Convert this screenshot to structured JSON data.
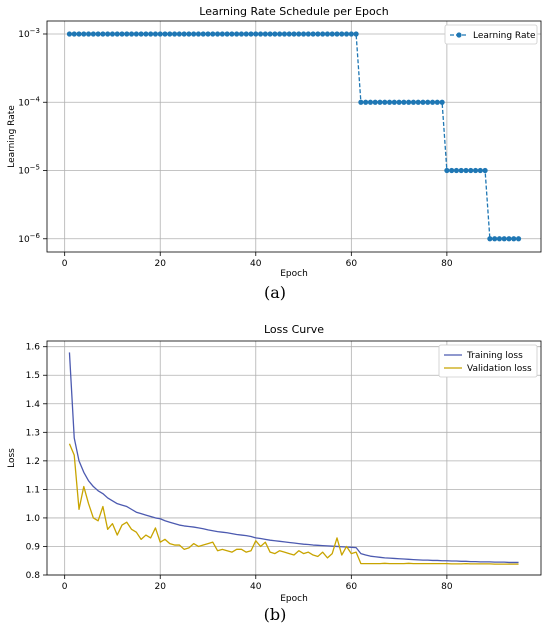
{
  "chart_data": [
    {
      "type": "line",
      "panel_label": "(a)",
      "title": "Learning Rate Schedule per Epoch",
      "xlabel": "Epoch",
      "ylabel": "Learning Rate",
      "yscale": "log",
      "xlim": [
        -3.7,
        99.7
      ],
      "ylim": [
        6.4e-07,
        0.00155
      ],
      "xticks": [
        0,
        20,
        40,
        60,
        80
      ],
      "yticks": [
        {
          "value": 1e-06,
          "base": "10",
          "exp": "−6"
        },
        {
          "value": 1e-05,
          "base": "10",
          "exp": "−5"
        },
        {
          "value": 0.0001,
          "base": "10",
          "exp": "−4"
        },
        {
          "value": 0.001,
          "base": "10",
          "exp": "−3"
        }
      ],
      "grid": true,
      "legend": "top-right",
      "series": [
        {
          "name": "Learning Rate",
          "color": "#1f77b4",
          "style": "dashed-with-markers",
          "x": [
            1,
            2,
            3,
            4,
            5,
            6,
            7,
            8,
            9,
            10,
            11,
            12,
            13,
            14,
            15,
            16,
            17,
            18,
            19,
            20,
            21,
            22,
            23,
            24,
            25,
            26,
            27,
            28,
            29,
            30,
            31,
            32,
            33,
            34,
            35,
            36,
            37,
            38,
            39,
            40,
            41,
            42,
            43,
            44,
            45,
            46,
            47,
            48,
            49,
            50,
            51,
            52,
            53,
            54,
            55,
            56,
            57,
            58,
            59,
            60,
            61,
            62,
            63,
            64,
            65,
            66,
            67,
            68,
            69,
            70,
            71,
            72,
            73,
            74,
            75,
            76,
            77,
            78,
            79,
            80,
            81,
            82,
            83,
            84,
            85,
            86,
            87,
            88,
            89,
            90,
            91,
            92,
            93,
            94,
            95
          ],
          "y": [
            0.001,
            0.001,
            0.001,
            0.001,
            0.001,
            0.001,
            0.001,
            0.001,
            0.001,
            0.001,
            0.001,
            0.001,
            0.001,
            0.001,
            0.001,
            0.001,
            0.001,
            0.001,
            0.001,
            0.001,
            0.001,
            0.001,
            0.001,
            0.001,
            0.001,
            0.001,
            0.001,
            0.001,
            0.001,
            0.001,
            0.001,
            0.001,
            0.001,
            0.001,
            0.001,
            0.001,
            0.001,
            0.001,
            0.001,
            0.001,
            0.001,
            0.001,
            0.001,
            0.001,
            0.001,
            0.001,
            0.001,
            0.001,
            0.001,
            0.001,
            0.001,
            0.001,
            0.001,
            0.001,
            0.001,
            0.001,
            0.001,
            0.001,
            0.001,
            0.001,
            0.001,
            0.0001,
            0.0001,
            0.0001,
            0.0001,
            0.0001,
            0.0001,
            0.0001,
            0.0001,
            0.0001,
            0.0001,
            0.0001,
            0.0001,
            0.0001,
            0.0001,
            0.0001,
            0.0001,
            0.0001,
            0.0001,
            1e-05,
            1e-05,
            1e-05,
            1e-05,
            1e-05,
            1e-05,
            1e-05,
            1e-05,
            1e-05,
            1e-06,
            1e-06,
            1e-06,
            1e-06,
            1e-06,
            1e-06,
            1e-06
          ]
        }
      ]
    },
    {
      "type": "line",
      "panel_label": "(b)",
      "title": "Loss Curve",
      "xlabel": "Epoch",
      "ylabel": "Loss",
      "xlim": [
        -3.7,
        99.7
      ],
      "ylim": [
        0.8,
        1.62
      ],
      "xticks": [
        0,
        20,
        40,
        60,
        80
      ],
      "yticks": [
        0.8,
        0.9,
        1.0,
        1.1,
        1.2,
        1.3,
        1.4,
        1.5,
        1.6
      ],
      "ytick_labels": [
        "0.8",
        "0.9",
        "1.0",
        "1.1",
        "1.2",
        "1.3",
        "1.4",
        "1.5",
        "1.6"
      ],
      "grid": true,
      "legend": "top-right",
      "series": [
        {
          "name": "Training loss",
          "color": "#4c5ab0",
          "x": [
            1,
            2,
            3,
            4,
            5,
            6,
            7,
            8,
            9,
            10,
            11,
            12,
            13,
            14,
            15,
            16,
            17,
            18,
            19,
            20,
            21,
            22,
            23,
            24,
            25,
            26,
            27,
            28,
            29,
            30,
            31,
            32,
            33,
            34,
            35,
            36,
            37,
            38,
            39,
            40,
            41,
            42,
            43,
            44,
            45,
            46,
            47,
            48,
            49,
            50,
            51,
            52,
            53,
            54,
            55,
            56,
            57,
            58,
            59,
            60,
            61,
            62,
            63,
            64,
            65,
            66,
            67,
            68,
            69,
            70,
            71,
            72,
            73,
            74,
            75,
            76,
            77,
            78,
            79,
            80,
            81,
            82,
            83,
            84,
            85,
            86,
            87,
            88,
            89,
            90,
            91,
            92,
            93,
            94,
            95
          ],
          "y": [
            1.58,
            1.28,
            1.2,
            1.16,
            1.13,
            1.11,
            1.095,
            1.085,
            1.07,
            1.06,
            1.05,
            1.045,
            1.04,
            1.03,
            1.02,
            1.015,
            1.01,
            1.005,
            1.0,
            0.997,
            0.99,
            0.985,
            0.98,
            0.975,
            0.972,
            0.97,
            0.968,
            0.965,
            0.962,
            0.958,
            0.955,
            0.952,
            0.95,
            0.948,
            0.945,
            0.942,
            0.94,
            0.938,
            0.935,
            0.93,
            0.928,
            0.925,
            0.922,
            0.92,
            0.918,
            0.916,
            0.914,
            0.912,
            0.91,
            0.908,
            0.907,
            0.905,
            0.904,
            0.903,
            0.902,
            0.901,
            0.9,
            0.899,
            0.898,
            0.897,
            0.896,
            0.875,
            0.87,
            0.866,
            0.864,
            0.862,
            0.86,
            0.859,
            0.858,
            0.857,
            0.856,
            0.855,
            0.854,
            0.853,
            0.852,
            0.852,
            0.851,
            0.851,
            0.85,
            0.85,
            0.849,
            0.849,
            0.848,
            0.848,
            0.847,
            0.847,
            0.846,
            0.846,
            0.846,
            0.845,
            0.845,
            0.845,
            0.844,
            0.844,
            0.844
          ]
        },
        {
          "name": "Validation loss",
          "color": "#c8a400",
          "x": [
            1,
            2,
            3,
            4,
            5,
            6,
            7,
            8,
            9,
            10,
            11,
            12,
            13,
            14,
            15,
            16,
            17,
            18,
            19,
            20,
            21,
            22,
            23,
            24,
            25,
            26,
            27,
            28,
            29,
            30,
            31,
            32,
            33,
            34,
            35,
            36,
            37,
            38,
            39,
            40,
            41,
            42,
            43,
            44,
            45,
            46,
            47,
            48,
            49,
            50,
            51,
            52,
            53,
            54,
            55,
            56,
            57,
            58,
            59,
            60,
            61,
            62,
            63,
            64,
            65,
            66,
            67,
            68,
            69,
            70,
            71,
            72,
            73,
            74,
            75,
            76,
            77,
            78,
            79,
            80,
            81,
            82,
            83,
            84,
            85,
            86,
            87,
            88,
            89,
            90,
            91,
            92,
            93,
            94,
            95
          ],
          "y": [
            1.26,
            1.22,
            1.03,
            1.11,
            1.05,
            1.0,
            0.99,
            1.04,
            0.96,
            0.98,
            0.94,
            0.975,
            0.985,
            0.96,
            0.95,
            0.925,
            0.94,
            0.93,
            0.965,
            0.915,
            0.925,
            0.91,
            0.905,
            0.905,
            0.89,
            0.895,
            0.91,
            0.9,
            0.905,
            0.91,
            0.915,
            0.885,
            0.89,
            0.885,
            0.88,
            0.89,
            0.89,
            0.88,
            0.885,
            0.92,
            0.9,
            0.915,
            0.88,
            0.875,
            0.885,
            0.88,
            0.875,
            0.87,
            0.885,
            0.875,
            0.88,
            0.87,
            0.865,
            0.88,
            0.86,
            0.875,
            0.93,
            0.87,
            0.9,
            0.875,
            0.88,
            0.84,
            0.84,
            0.84,
            0.84,
            0.84,
            0.841,
            0.84,
            0.84,
            0.84,
            0.84,
            0.841,
            0.84,
            0.84,
            0.84,
            0.84,
            0.84,
            0.84,
            0.84,
            0.84,
            0.839,
            0.839,
            0.839,
            0.84,
            0.839,
            0.839,
            0.839,
            0.839,
            0.839,
            0.838,
            0.838,
            0.838,
            0.838,
            0.838,
            0.838
          ]
        }
      ]
    }
  ]
}
